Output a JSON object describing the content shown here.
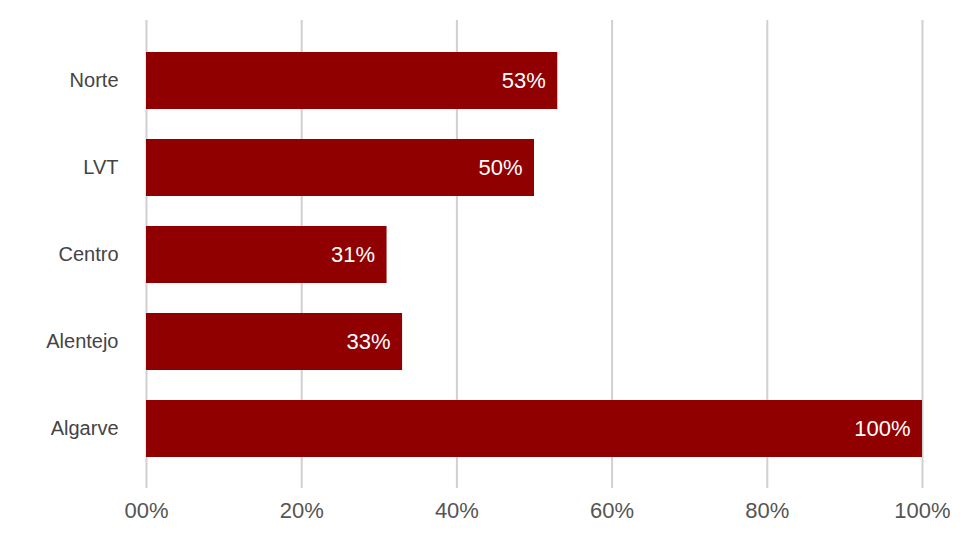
{
  "chart_data": {
    "type": "bar",
    "orientation": "horizontal",
    "categories": [
      "Norte",
      "LVT",
      "Centro",
      "Alentejo",
      "Algarve"
    ],
    "values": [
      53,
      50,
      31,
      33,
      100
    ],
    "value_labels": [
      "53%",
      "50%",
      "31%",
      "33%",
      "100%"
    ],
    "color": "#900000",
    "xlim": [
      0,
      100
    ],
    "xticks": [
      {
        "value": 0,
        "label": "00%"
      },
      {
        "value": 20,
        "label": "20%"
      },
      {
        "value": 40,
        "label": "40%"
      },
      {
        "value": 60,
        "label": "60%"
      },
      {
        "value": 80,
        "label": "80%"
      },
      {
        "value": 100,
        "label": "100%"
      }
    ],
    "grid": true,
    "data_labels": true
  }
}
